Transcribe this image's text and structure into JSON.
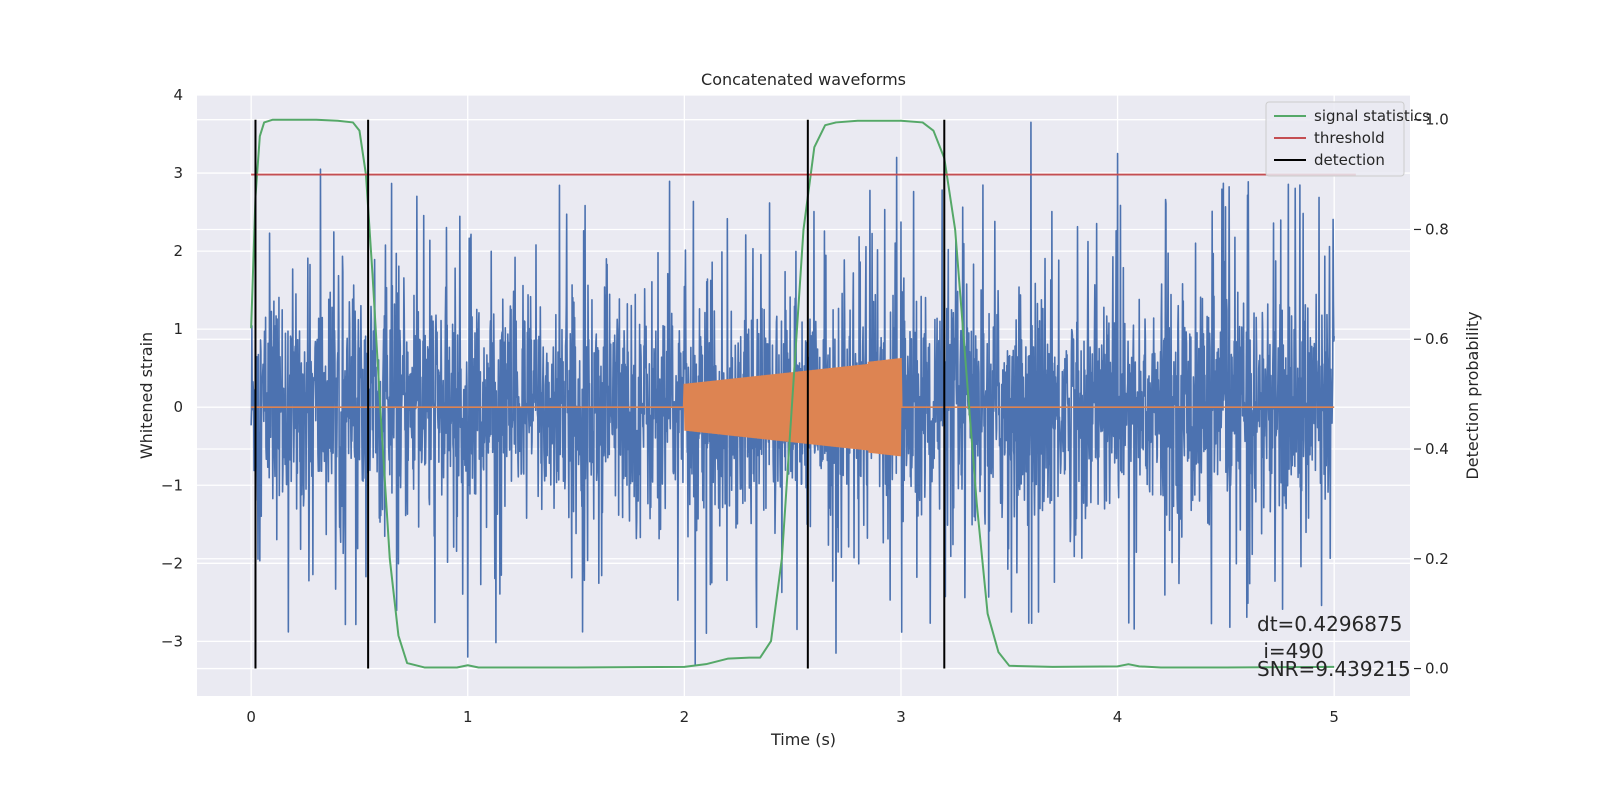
{
  "chart_data": {
    "type": "line",
    "title": "Concatenated waveforms",
    "xlabel": "Time (s)",
    "ylabel": "Whitened strain",
    "y2label": "Detection probability",
    "xlim": [
      -0.25,
      5.35
    ],
    "ylim": [
      -3.7,
      4.0
    ],
    "y2lim": [
      -0.05,
      1.045
    ],
    "xticks": [
      0,
      1,
      2,
      3,
      4,
      5
    ],
    "xtick_labels": [
      "0",
      "1",
      "2",
      "3",
      "4",
      "5"
    ],
    "yticks": [
      -3,
      -2,
      -1,
      0,
      1,
      2,
      3,
      4
    ],
    "ytick_labels": [
      "−3",
      "−2",
      "−1",
      "0",
      "1",
      "2",
      "3",
      "4"
    ],
    "y2ticks": [
      0.0,
      0.2,
      0.4,
      0.6,
      0.8,
      1.0
    ],
    "y2tick_labels": [
      "0.0",
      "0.2",
      "0.4",
      "0.6",
      "0.8",
      "1.0"
    ],
    "grid": true,
    "legend_position": "upper right",
    "legend": [
      {
        "label": "signal statistics",
        "color": "#55a868"
      },
      {
        "label": "threshold",
        "color": "#c44e52"
      },
      {
        "label": "detection",
        "color": "#000000"
      }
    ],
    "strain_noise": {
      "color": "#4c72b0",
      "x_range": [
        0,
        5
      ],
      "description_note": "whitened noise, peaks roughly within [-3.3, 3.7]",
      "notable_peaks": [
        {
          "x": 0.32,
          "y": 3.05
        },
        {
          "x": 2.98,
          "y": 3.2
        },
        {
          "x": 3.6,
          "y": 3.65
        },
        {
          "x": 4.0,
          "y": 3.25
        },
        {
          "x": 2.05,
          "y": -3.3
        },
        {
          "x": 1.0,
          "y": -3.2
        },
        {
          "x": 2.7,
          "y": -3.15
        }
      ]
    },
    "injected_waveform": {
      "color": "#dd8452",
      "start": 2.0,
      "end": 3.0,
      "amp_start": 0.3,
      "amp_end": 0.6,
      "baseline": 0
    },
    "signal_statistics": {
      "color": "#55a868",
      "x": [
        0.0,
        0.02,
        0.04,
        0.06,
        0.1,
        0.2,
        0.3,
        0.4,
        0.47,
        0.5,
        0.53,
        0.56,
        0.6,
        0.64,
        0.68,
        0.72,
        0.8,
        0.95,
        1.0,
        1.05,
        1.5,
        2.0,
        2.1,
        2.2,
        2.3,
        2.35,
        2.4,
        2.45,
        2.5,
        2.55,
        2.6,
        2.65,
        2.7,
        2.8,
        3.0,
        3.1,
        3.15,
        3.2,
        3.25,
        3.3,
        3.35,
        3.4,
        3.45,
        3.5,
        3.7,
        4.0,
        4.05,
        4.1,
        4.2,
        4.5,
        5.0
      ],
      "y": [
        0.62,
        0.86,
        0.97,
        0.995,
        1.0,
        1.0,
        1.0,
        0.998,
        0.995,
        0.98,
        0.9,
        0.72,
        0.45,
        0.2,
        0.06,
        0.01,
        0.002,
        0.002,
        0.006,
        0.002,
        0.002,
        0.003,
        0.008,
        0.018,
        0.02,
        0.02,
        0.05,
        0.2,
        0.5,
        0.8,
        0.95,
        0.99,
        0.995,
        0.998,
        0.998,
        0.995,
        0.98,
        0.93,
        0.8,
        0.55,
        0.3,
        0.1,
        0.03,
        0.005,
        0.003,
        0.004,
        0.008,
        0.004,
        0.002,
        0.002,
        0.003
      ]
    },
    "threshold": {
      "color": "#c44e52",
      "value": 0.9,
      "x_range": [
        0,
        5.1
      ]
    },
    "detections": {
      "color": "#000000",
      "x": [
        0.02,
        0.54,
        2.57,
        3.2
      ]
    },
    "annotations": [
      "dt=0.4296875",
      " i=490",
      "SNR=9.439215"
    ]
  }
}
